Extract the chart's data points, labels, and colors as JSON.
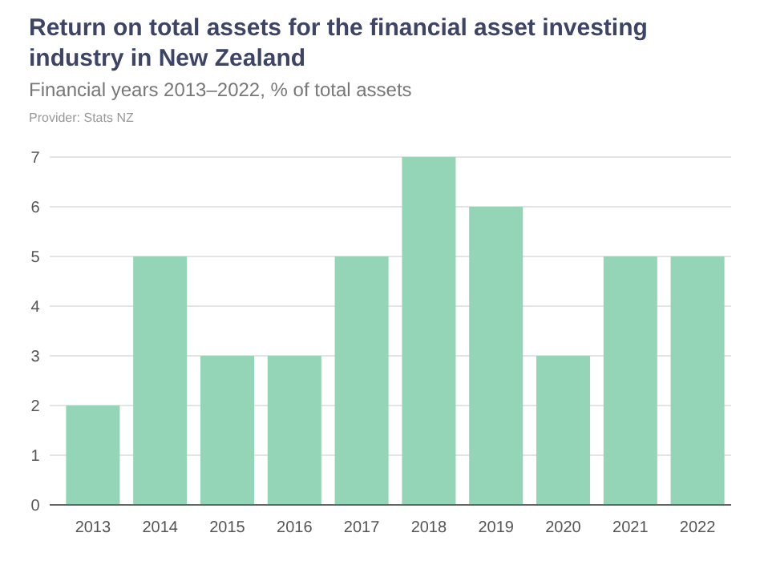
{
  "chart_data": {
    "type": "bar",
    "title": "Return on total assets for the financial asset investing industry in New Zealand",
    "subtitle": "Financial years 2013–2022, % of total assets",
    "annotations": [
      "Provider: Stats NZ"
    ],
    "categories": [
      "2013",
      "2014",
      "2015",
      "2016",
      "2017",
      "2018",
      "2019",
      "2020",
      "2021",
      "2022"
    ],
    "values": [
      2,
      5,
      3,
      3,
      5,
      7,
      6,
      3,
      5,
      5
    ],
    "color": "#95d5b7",
    "ylim": [
      0,
      7
    ],
    "yticks": [
      0,
      1,
      2,
      3,
      4,
      5,
      6,
      7
    ],
    "grid": "y"
  }
}
